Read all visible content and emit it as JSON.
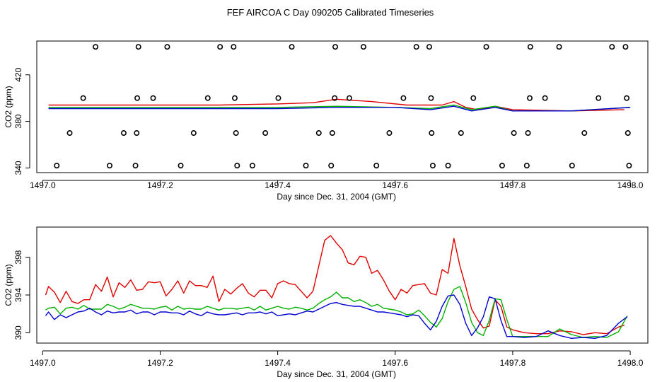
{
  "figure_title": "FEF AIRCOA C  Day 090205  Calibrated Timeseries",
  "colors": {
    "red": "#e00000",
    "green": "#00b000",
    "blue": "#0000d0",
    "axis": "#000000"
  },
  "chart_data": [
    {
      "type": "scatter",
      "title": "",
      "xlabel": "Day since Dec. 31, 2004 (GMT)",
      "ylabel": "CO2 (ppm)",
      "xlim": [
        1496.99,
        1498.03
      ],
      "ylim": [
        336,
        449
      ],
      "xticks": [
        1497.0,
        1497.2,
        1497.4,
        1497.6,
        1497.8,
        1498.0
      ],
      "xtick_labels": [
        "1497.0",
        "1497.2",
        "1497.4",
        "1497.6",
        "1497.8",
        "1498.0"
      ],
      "yticks": [
        340,
        380,
        420
      ],
      "ytick_labels": [
        "340",
        "380",
        "420"
      ],
      "calibration_points": [
        {
          "x": 1497.09,
          "y": 444
        },
        {
          "x": 1497.163,
          "y": 444
        },
        {
          "x": 1497.212,
          "y": 444
        },
        {
          "x": 1497.302,
          "y": 444
        },
        {
          "x": 1497.325,
          "y": 444
        },
        {
          "x": 1497.424,
          "y": 444
        },
        {
          "x": 1497.498,
          "y": 444
        },
        {
          "x": 1497.546,
          "y": 444
        },
        {
          "x": 1497.636,
          "y": 444
        },
        {
          "x": 1497.658,
          "y": 444
        },
        {
          "x": 1497.755,
          "y": 444
        },
        {
          "x": 1497.83,
          "y": 444
        },
        {
          "x": 1497.879,
          "y": 444
        },
        {
          "x": 1497.969,
          "y": 444
        },
        {
          "x": 1497.992,
          "y": 444
        },
        {
          "x": 1497.069,
          "y": 400
        },
        {
          "x": 1497.161,
          "y": 400
        },
        {
          "x": 1497.188,
          "y": 400
        },
        {
          "x": 1497.281,
          "y": 400
        },
        {
          "x": 1497.327,
          "y": 400
        },
        {
          "x": 1497.401,
          "y": 400
        },
        {
          "x": 1497.497,
          "y": 400
        },
        {
          "x": 1497.522,
          "y": 400
        },
        {
          "x": 1497.614,
          "y": 400
        },
        {
          "x": 1497.661,
          "y": 400
        },
        {
          "x": 1497.733,
          "y": 400
        },
        {
          "x": 1497.829,
          "y": 400
        },
        {
          "x": 1497.855,
          "y": 400
        },
        {
          "x": 1497.946,
          "y": 400
        },
        {
          "x": 1497.994,
          "y": 400
        },
        {
          "x": 1497.046,
          "y": 370
        },
        {
          "x": 1497.138,
          "y": 370
        },
        {
          "x": 1497.16,
          "y": 370
        },
        {
          "x": 1497.257,
          "y": 370
        },
        {
          "x": 1497.329,
          "y": 370
        },
        {
          "x": 1497.379,
          "y": 370
        },
        {
          "x": 1497.47,
          "y": 370
        },
        {
          "x": 1497.493,
          "y": 370
        },
        {
          "x": 1497.59,
          "y": 370
        },
        {
          "x": 1497.662,
          "y": 370
        },
        {
          "x": 1497.712,
          "y": 370
        },
        {
          "x": 1497.802,
          "y": 370
        },
        {
          "x": 1497.826,
          "y": 370
        },
        {
          "x": 1497.922,
          "y": 370
        },
        {
          "x": 1497.996,
          "y": 370
        },
        {
          "x": 1497.024,
          "y": 342
        },
        {
          "x": 1497.114,
          "y": 342
        },
        {
          "x": 1497.158,
          "y": 342
        },
        {
          "x": 1497.235,
          "y": 342
        },
        {
          "x": 1497.331,
          "y": 342
        },
        {
          "x": 1497.357,
          "y": 342
        },
        {
          "x": 1497.448,
          "y": 342
        },
        {
          "x": 1497.491,
          "y": 342
        },
        {
          "x": 1497.568,
          "y": 342
        },
        {
          "x": 1497.664,
          "y": 342
        },
        {
          "x": 1497.69,
          "y": 342
        },
        {
          "x": 1497.782,
          "y": 342
        },
        {
          "x": 1497.824,
          "y": 342
        },
        {
          "x": 1497.901,
          "y": 342
        },
        {
          "x": 1497.998,
          "y": 342
        }
      ],
      "series": [
        {
          "name": "red",
          "color": "#e00000",
          "x": [
            1497.01,
            1497.1,
            1497.2,
            1497.3,
            1497.4,
            1497.46,
            1497.5,
            1497.56,
            1497.62,
            1497.68,
            1497.7,
            1497.72,
            1497.74,
            1497.77,
            1497.8,
            1497.9,
            1497.99
          ],
          "y": [
            394,
            394,
            394,
            394,
            395,
            396,
            399,
            397,
            394,
            394,
            397,
            392,
            390,
            393,
            390,
            389,
            390
          ]
        },
        {
          "name": "green",
          "color": "#00b000",
          "x": [
            1497.01,
            1497.1,
            1497.2,
            1497.3,
            1497.4,
            1497.5,
            1497.6,
            1497.66,
            1497.7,
            1497.73,
            1497.77,
            1497.8,
            1497.9,
            1498.0
          ],
          "y": [
            392,
            392,
            392,
            392,
            392,
            393,
            392,
            391,
            394,
            390,
            393,
            389,
            389,
            392
          ]
        },
        {
          "name": "blue",
          "color": "#0000d0",
          "x": [
            1497.01,
            1497.1,
            1497.2,
            1497.3,
            1497.4,
            1497.5,
            1497.6,
            1497.66,
            1497.7,
            1497.73,
            1497.77,
            1497.8,
            1497.9,
            1498.0
          ],
          "y": [
            391,
            391,
            391,
            391,
            391,
            392,
            392,
            390,
            393,
            389,
            392,
            389,
            389,
            392
          ]
        }
      ]
    },
    {
      "type": "line",
      "title": "",
      "xlabel": "Day since Dec. 31, 2004 (GMT)",
      "ylabel": "CO2 (ppm)",
      "xlim": [
        1496.99,
        1498.03
      ],
      "ylim": [
        388.9,
        401.2
      ],
      "xticks": [
        1497.0,
        1497.2,
        1497.4,
        1497.6,
        1497.8,
        1498.0
      ],
      "xtick_labels": [
        "1497.0",
        "1497.2",
        "1497.4",
        "1497.6",
        "1497.8",
        "1498.0"
      ],
      "yticks": [
        390,
        394,
        398
      ],
      "ytick_labels": [
        "390",
        "394",
        "398"
      ],
      "series": [
        {
          "name": "red",
          "color": "#e00000",
          "x": [
            1497.005,
            1497.01,
            1497.02,
            1497.03,
            1497.04,
            1497.05,
            1497.06,
            1497.07,
            1497.08,
            1497.09,
            1497.1,
            1497.11,
            1497.12,
            1497.13,
            1497.14,
            1497.15,
            1497.16,
            1497.17,
            1497.18,
            1497.19,
            1497.2,
            1497.21,
            1497.22,
            1497.23,
            1497.24,
            1497.25,
            1497.26,
            1497.27,
            1497.28,
            1497.29,
            1497.3,
            1497.31,
            1497.32,
            1497.33,
            1497.34,
            1497.35,
            1497.36,
            1497.37,
            1497.38,
            1497.39,
            1497.4,
            1497.41,
            1497.42,
            1497.43,
            1497.44,
            1497.45,
            1497.46,
            1497.47,
            1497.48,
            1497.49,
            1497.5,
            1497.51,
            1497.52,
            1497.53,
            1497.54,
            1497.55,
            1497.56,
            1497.57,
            1497.58,
            1497.59,
            1497.6,
            1497.61,
            1497.62,
            1497.63,
            1497.64,
            1497.65,
            1497.66,
            1497.67,
            1497.68,
            1497.69,
            1497.7,
            1497.71,
            1497.72,
            1497.73,
            1497.74,
            1497.75,
            1497.76,
            1497.77,
            1497.78,
            1497.79,
            1497.8,
            1497.82,
            1497.84,
            1497.86,
            1497.88,
            1497.9,
            1497.92,
            1497.94,
            1497.96,
            1497.98,
            1497.99
          ],
          "y": [
            394.0,
            394.9,
            394.3,
            393.2,
            394.4,
            393.3,
            393.1,
            393.5,
            393.5,
            395.1,
            394.4,
            395.9,
            393.8,
            395.3,
            394.8,
            395.6,
            394.5,
            394.6,
            395.4,
            395.3,
            395.4,
            393.9,
            394.6,
            395.5,
            394.2,
            395.5,
            395.0,
            395.0,
            394.8,
            396.0,
            393.3,
            394.6,
            394.1,
            394.7,
            395.2,
            394.2,
            393.8,
            394.5,
            394.5,
            393.7,
            395.2,
            395.5,
            395.2,
            395.1,
            394.4,
            393.7,
            394.4,
            397.1,
            399.8,
            400.3,
            399.5,
            398.8,
            397.4,
            397.2,
            398.1,
            398.0,
            396.3,
            396.6,
            395.6,
            394.4,
            393.5,
            394.6,
            394.2,
            395.0,
            395.1,
            395.2,
            394.2,
            394.0,
            396.7,
            396.3,
            400.0,
            397.1,
            394.9,
            392.5,
            391.4,
            390.5,
            390.7,
            393.5,
            392.8,
            390.6,
            390.3,
            390.0,
            389.9,
            389.9,
            390.2,
            390.1,
            389.8,
            390.0,
            389.9,
            390.6,
            390.8
          ]
        },
        {
          "name": "green",
          "color": "#00b000",
          "x": [
            1497.005,
            1497.01,
            1497.02,
            1497.03,
            1497.04,
            1497.05,
            1497.06,
            1497.07,
            1497.08,
            1497.09,
            1497.1,
            1497.11,
            1497.12,
            1497.13,
            1497.14,
            1497.15,
            1497.16,
            1497.17,
            1497.18,
            1497.19,
            1497.2,
            1497.21,
            1497.22,
            1497.23,
            1497.24,
            1497.25,
            1497.26,
            1497.27,
            1497.28,
            1497.29,
            1497.3,
            1497.31,
            1497.32,
            1497.33,
            1497.34,
            1497.35,
            1497.36,
            1497.37,
            1497.38,
            1497.39,
            1497.4,
            1497.41,
            1497.42,
            1497.43,
            1497.44,
            1497.45,
            1497.46,
            1497.47,
            1497.48,
            1497.49,
            1497.5,
            1497.51,
            1497.52,
            1497.53,
            1497.54,
            1497.55,
            1497.56,
            1497.57,
            1497.58,
            1497.59,
            1497.6,
            1497.61,
            1497.62,
            1497.63,
            1497.64,
            1497.65,
            1497.66,
            1497.67,
            1497.68,
            1497.69,
            1497.7,
            1497.71,
            1497.72,
            1497.73,
            1497.74,
            1497.75,
            1497.76,
            1497.77,
            1497.78,
            1497.79,
            1497.8,
            1497.82,
            1497.84,
            1497.86,
            1497.88,
            1497.9,
            1497.92,
            1497.94,
            1497.96,
            1497.98,
            1497.995
          ],
          "y": [
            392.4,
            392.6,
            392.7,
            392.0,
            392.6,
            392.7,
            392.5,
            392.9,
            392.5,
            392.5,
            392.5,
            393.0,
            392.8,
            392.5,
            392.7,
            393.0,
            392.8,
            392.6,
            392.6,
            392.5,
            392.7,
            392.8,
            392.4,
            392.8,
            392.5,
            392.6,
            392.5,
            392.5,
            392.8,
            392.6,
            392.4,
            392.6,
            392.6,
            392.5,
            392.6,
            392.7,
            392.4,
            392.8,
            392.4,
            392.6,
            392.8,
            392.6,
            392.5,
            392.7,
            392.6,
            392.4,
            392.6,
            393.1,
            393.5,
            393.8,
            394.3,
            393.7,
            393.7,
            393.3,
            393.5,
            393.2,
            392.8,
            393.0,
            392.6,
            392.5,
            392.4,
            392.2,
            391.9,
            392.0,
            392.4,
            391.8,
            391.1,
            390.6,
            391.5,
            393.3,
            394.6,
            394.9,
            393.2,
            391.1,
            390.0,
            389.7,
            391.3,
            393.6,
            393.5,
            391.4,
            389.6,
            389.6,
            389.6,
            389.6,
            390.4,
            389.8,
            389.5,
            389.6,
            389.5,
            390.1,
            391.8
          ]
        },
        {
          "name": "blue",
          "color": "#0000d0",
          "x": [
            1497.005,
            1497.01,
            1497.02,
            1497.03,
            1497.04,
            1497.05,
            1497.06,
            1497.07,
            1497.08,
            1497.09,
            1497.1,
            1497.11,
            1497.12,
            1497.13,
            1497.14,
            1497.15,
            1497.16,
            1497.17,
            1497.18,
            1497.19,
            1497.2,
            1497.21,
            1497.22,
            1497.23,
            1497.24,
            1497.25,
            1497.26,
            1497.27,
            1497.28,
            1497.29,
            1497.3,
            1497.31,
            1497.32,
            1497.33,
            1497.34,
            1497.35,
            1497.36,
            1497.37,
            1497.38,
            1497.39,
            1497.4,
            1497.41,
            1497.42,
            1497.43,
            1497.44,
            1497.45,
            1497.46,
            1497.47,
            1497.48,
            1497.49,
            1497.5,
            1497.51,
            1497.52,
            1497.53,
            1497.54,
            1497.55,
            1497.56,
            1497.57,
            1497.58,
            1497.59,
            1497.6,
            1497.61,
            1497.62,
            1497.63,
            1497.64,
            1497.65,
            1497.66,
            1497.67,
            1497.68,
            1497.69,
            1497.7,
            1497.71,
            1497.72,
            1497.73,
            1497.74,
            1497.75,
            1497.76,
            1497.77,
            1497.78,
            1497.79,
            1497.8,
            1497.82,
            1497.84,
            1497.86,
            1497.88,
            1497.9,
            1497.92,
            1497.94,
            1497.96,
            1497.98,
            1497.995
          ],
          "y": [
            391.8,
            392.2,
            391.4,
            391.9,
            391.6,
            391.9,
            392.2,
            392.3,
            392.6,
            392.2,
            391.9,
            392.3,
            392.1,
            392.2,
            392.2,
            392.4,
            392.0,
            392.2,
            392.2,
            391.9,
            392.2,
            392.2,
            392.1,
            392.1,
            391.9,
            392.3,
            392.0,
            391.8,
            392.2,
            392.0,
            391.9,
            391.9,
            392.0,
            392.1,
            391.9,
            392.1,
            392.1,
            392.2,
            392.0,
            392.2,
            391.8,
            391.9,
            392.0,
            391.9,
            392.1,
            392.3,
            392.2,
            392.5,
            392.8,
            393.1,
            393.2,
            393.0,
            392.9,
            392.8,
            392.8,
            392.6,
            392.4,
            392.2,
            392.2,
            392.1,
            392.0,
            391.9,
            391.7,
            391.9,
            391.8,
            391.0,
            390.3,
            391.2,
            392.8,
            393.9,
            394.0,
            393.0,
            391.0,
            389.7,
            390.5,
            391.7,
            393.8,
            393.6,
            391.3,
            389.6,
            389.6,
            389.5,
            389.6,
            390.2,
            389.7,
            389.4,
            389.5,
            389.4,
            389.7,
            391.0,
            391.7
          ]
        }
      ]
    }
  ]
}
